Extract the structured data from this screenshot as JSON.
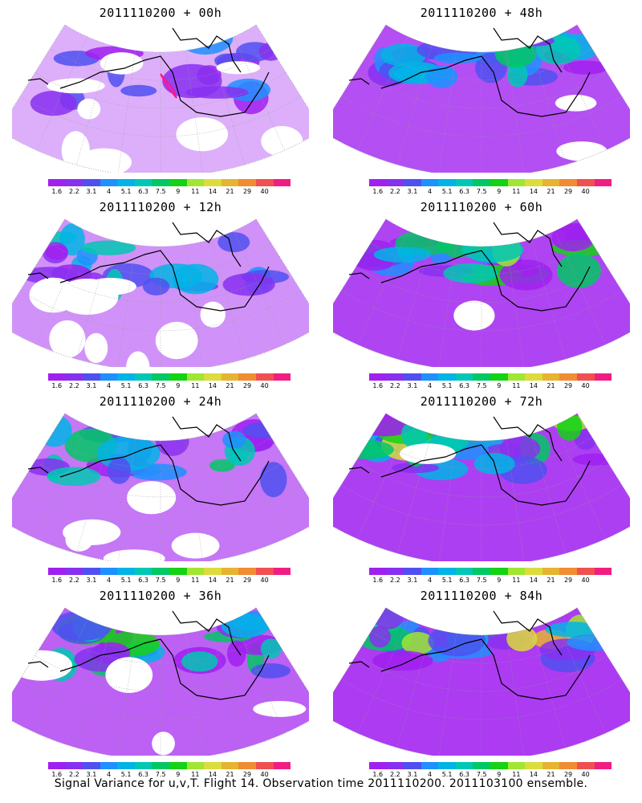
{
  "panels": [
    {
      "title": "2011110200 + 00h",
      "lead_hours": 0,
      "coverage": 0.28,
      "intensity": 0.3,
      "highlight": true
    },
    {
      "title": "2011110200 + 48h",
      "lead_hours": 48,
      "coverage": 0.85,
      "intensity": 0.55,
      "highlight": false
    },
    {
      "title": "2011110200 + 12h",
      "lead_hours": 12,
      "coverage": 0.45,
      "intensity": 0.35,
      "highlight": false
    },
    {
      "title": "2011110200 + 60h",
      "lead_hours": 60,
      "coverage": 0.92,
      "intensity": 0.62,
      "highlight": false
    },
    {
      "title": "2011110200 + 24h",
      "lead_hours": 24,
      "coverage": 0.62,
      "intensity": 0.42,
      "highlight": false
    },
    {
      "title": "2011110200 + 72h",
      "lead_hours": 72,
      "coverage": 0.95,
      "intensity": 0.72,
      "highlight": false
    },
    {
      "title": "2011110200 + 36h",
      "lead_hours": 36,
      "coverage": 0.75,
      "intensity": 0.48,
      "highlight": false
    },
    {
      "title": "2011110200 + 84h",
      "lead_hours": 84,
      "coverage": 0.97,
      "intensity": 0.8,
      "highlight": false
    }
  ],
  "colorbar": {
    "labels": [
      "1.6",
      "2.2",
      "3.1",
      "4",
      "5.1",
      "6.3",
      "7.5",
      "9",
      "11",
      "14",
      "21",
      "29",
      "40"
    ],
    "colors": [
      "#a020f0",
      "#8830f0",
      "#5050f0",
      "#1e90ff",
      "#00b4e6",
      "#00c8b4",
      "#00c864",
      "#14d214",
      "#a0e632",
      "#dcdc3c",
      "#e6b432",
      "#f08c32",
      "#f05050",
      "#f01e82"
    ]
  },
  "caption": "Signal Variance for u,v,T. Flight 14. Observation time 2011110200. 2011103100 ensemble."
}
